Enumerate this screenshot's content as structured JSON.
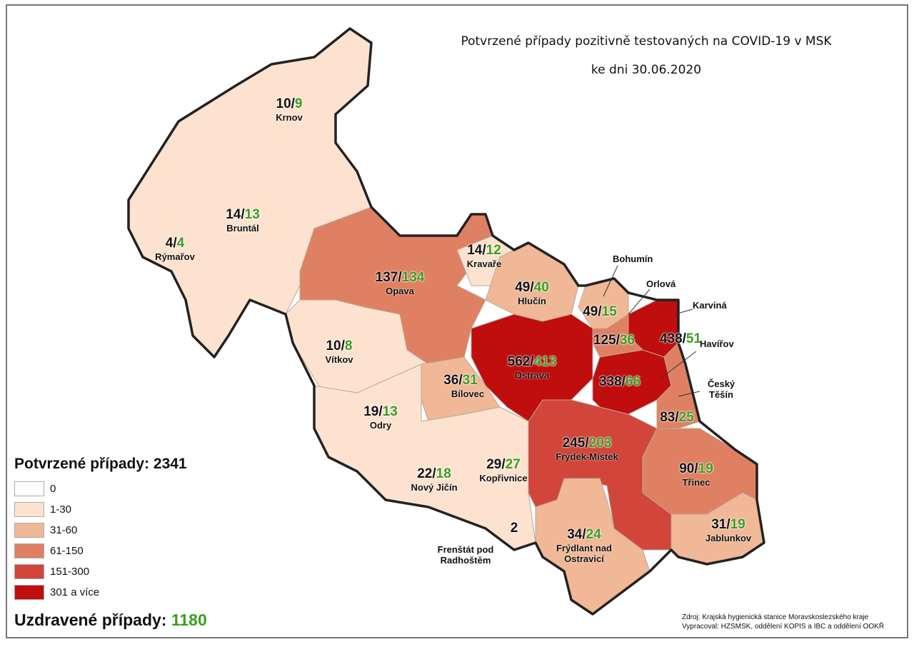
{
  "title_line1": "Potvrzené případy pozitivně testovaných na COVID-19 v MSK",
  "title_line2": "ke dni 30.06.2020",
  "legend": {
    "confirmed_label": "Potvrzené případy:",
    "confirmed_total": "2341",
    "classes": [
      {
        "label": "0",
        "color": "#ffffff"
      },
      {
        "label": "1-30",
        "color": "#fde3cf"
      },
      {
        "label": "31-60",
        "color": "#f0b896"
      },
      {
        "label": "61-150",
        "color": "#e08062"
      },
      {
        "label": "151-300",
        "color": "#d2453a"
      },
      {
        "label": "301 a více",
        "color": "#c00d0d"
      }
    ],
    "recovered_label": "Uzdravené případy:",
    "recovered_total": "1180"
  },
  "accent_green": "#3a9e1f",
  "regions": [
    {
      "name": "Krnov",
      "confirmed": "10",
      "recovered": "9",
      "class": "1-30"
    },
    {
      "name": "Bruntál",
      "confirmed": "14",
      "recovered": "13",
      "class": "1-30"
    },
    {
      "name": "Rýmařov",
      "confirmed": "4",
      "recovered": "4",
      "class": "1-30"
    },
    {
      "name": "Opava",
      "confirmed": "137",
      "recovered": "134",
      "class": "61-150"
    },
    {
      "name": "Kravaře",
      "confirmed": "14",
      "recovered": "12",
      "class": "1-30"
    },
    {
      "name": "Hlučín",
      "confirmed": "49",
      "recovered": "40",
      "class": "31-60"
    },
    {
      "name": "Bohumín",
      "confirmed": "49",
      "recovered": "15",
      "class": "31-60"
    },
    {
      "name": "Orlová",
      "confirmed": "125",
      "recovered": "36",
      "class": "61-150"
    },
    {
      "name": "Karviná",
      "confirmed": "438",
      "recovered": "51",
      "class": "301 a více"
    },
    {
      "name": "Vítkov",
      "confirmed": "10",
      "recovered": "8",
      "class": "1-30"
    },
    {
      "name": "Ostrava",
      "confirmed": "562",
      "recovered": "413",
      "class": "301 a více"
    },
    {
      "name": "Havířov",
      "confirmed": "338",
      "recovered": "66",
      "class": "301 a více"
    },
    {
      "name": "Bílovec",
      "confirmed": "36",
      "recovered": "31",
      "class": "31-60"
    },
    {
      "name": "Český Těšín",
      "confirmed": "83",
      "recovered": "25",
      "class": "61-150"
    },
    {
      "name": "Odry",
      "confirmed": "19",
      "recovered": "13",
      "class": "1-30"
    },
    {
      "name": "Frýdek-Místek",
      "confirmed": "245",
      "recovered": "203",
      "class": "151-300"
    },
    {
      "name": "Nový Jičín",
      "confirmed": "22",
      "recovered": "18",
      "class": "1-30"
    },
    {
      "name": "Kopřivnice",
      "confirmed": "29",
      "recovered": "27",
      "class": "1-30"
    },
    {
      "name": "Třinec",
      "confirmed": "90",
      "recovered": "19",
      "class": "61-150"
    },
    {
      "name": "Frenštát pod Radhoštěm",
      "confirmed": "2",
      "recovered": "",
      "class": "1-30"
    },
    {
      "name": "Frýdlant nad Ostravicí",
      "confirmed": "34",
      "recovered": "24",
      "class": "31-60"
    },
    {
      "name": "Jablunkov",
      "confirmed": "31",
      "recovered": "19",
      "class": "31-60"
    }
  ],
  "credits_line1": "Zdroj: Krajská hygienická stanice Moravskoslezského kraje",
  "credits_line2": "Vypracoval: HZSMSK, oddělení KOPIS a IBC a oddělení OOKŘ"
}
